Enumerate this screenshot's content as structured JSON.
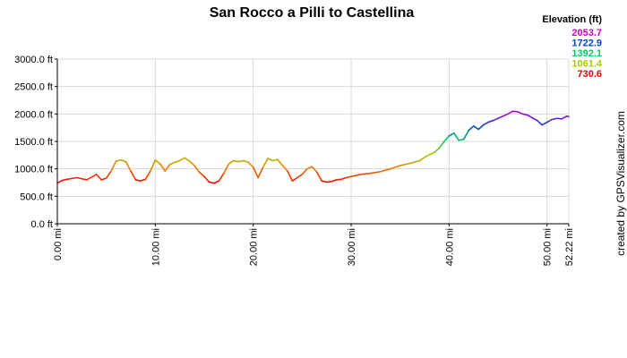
{
  "chart_data": {
    "type": "line",
    "title": "San Rocco a Pilli to Castellina",
    "credit": "created by GPSVisualizer.com",
    "xlabel": "",
    "ylabel": "",
    "x_unit": "mi",
    "y_unit": "ft",
    "xlim": [
      0,
      52.22
    ],
    "ylim": [
      0,
      3000
    ],
    "grid": true,
    "x_ticks": [
      "0.00 mi",
      "10.00 mi",
      "20.00 mi",
      "30.00 mi",
      "40.00 mi",
      "50.00 mi",
      "52.22 mi"
    ],
    "y_ticks": [
      "0.0 ft",
      "500.0 ft",
      "1000.0 ft",
      "1500.0 ft",
      "2000.0 ft",
      "2500.0 ft",
      "3000.0 ft"
    ],
    "legend": {
      "title": "Elevation (ft)",
      "placement": "top-right",
      "entries": [
        {
          "label": "2053.7",
          "color": "#cc00cc"
        },
        {
          "label": "1722.9",
          "color": "#0044cc"
        },
        {
          "label": "1392.1",
          "color": "#00cc66"
        },
        {
          "label": "1061.4",
          "color": "#aacc00"
        },
        {
          "label": "730.6",
          "color": "#ee0000"
        }
      ]
    },
    "color_scale": {
      "min": 730.6,
      "max": 2053.7,
      "stops": [
        "#ee0000",
        "#ee7700",
        "#aacc00",
        "#00cc66",
        "#0044cc",
        "#cc00cc"
      ]
    },
    "series": [
      {
        "x": [
          0,
          0.5,
          1,
          2,
          3,
          4,
          4.5,
          5,
          5.5,
          6,
          6.5,
          7,
          7.5,
          8,
          8.5,
          9,
          9.5,
          10,
          10.5,
          11,
          11.5,
          12,
          12.5,
          13,
          13.5,
          14,
          14.5,
          15,
          15.5,
          16,
          16.5,
          17,
          17.5,
          18,
          18.5,
          19,
          19.5,
          20,
          20.5,
          21,
          21.5,
          22,
          22.5,
          23,
          23.5,
          24,
          24.5,
          25,
          25.5,
          26,
          26.5,
          27,
          27.5,
          28,
          28.5,
          29,
          29.5,
          30,
          30.5,
          31,
          32,
          33,
          34,
          35,
          36,
          37,
          37.5,
          38,
          38.5,
          39,
          39.5,
          40,
          40.5,
          41,
          41.5,
          42,
          42.5,
          43,
          43.5,
          44,
          44.5,
          45,
          45.5,
          46,
          46.5,
          47,
          47.5,
          48,
          48.5,
          49,
          49.5,
          50,
          50.5,
          51,
          51.5,
          52,
          52.22
        ],
        "y": [
          740,
          790,
          810,
          840,
          800,
          900,
          800,
          830,
          960,
          1140,
          1160,
          1130,
          960,
          800,
          780,
          810,
          960,
          1160,
          1090,
          960,
          1080,
          1120,
          1150,
          1200,
          1140,
          1060,
          940,
          860,
          760,
          740,
          780,
          920,
          1090,
          1150,
          1130,
          1150,
          1120,
          1030,
          840,
          1030,
          1190,
          1150,
          1170,
          1060,
          960,
          780,
          840,
          900,
          1000,
          1040,
          940,
          780,
          760,
          770,
          800,
          810,
          840,
          860,
          880,
          900,
          920,
          950,
          1000,
          1060,
          1100,
          1150,
          1210,
          1260,
          1300,
          1380,
          1500,
          1600,
          1650,
          1520,
          1540,
          1700,
          1780,
          1720,
          1800,
          1850,
          1880,
          1920,
          1960,
          2000,
          2050,
          2040,
          2000,
          1980,
          1930,
          1880,
          1800,
          1850,
          1900,
          1920,
          1910,
          1960,
          1950
        ]
      }
    ]
  }
}
